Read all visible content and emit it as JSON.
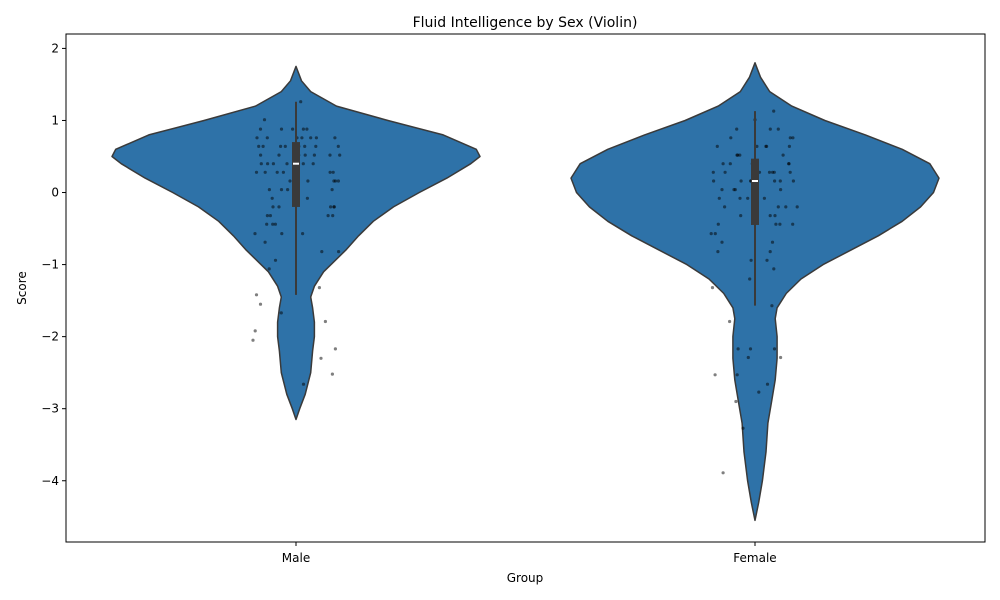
{
  "chart_data": {
    "type": "violin",
    "title": "Fluid Intelligence by Sex (Violin)",
    "xlabel": "Group",
    "ylabel": "Score",
    "ylim": [
      -4.85,
      2.2
    ],
    "yticks": [
      2,
      1,
      0,
      -1,
      -2,
      -3,
      -4
    ],
    "ytick_labels": [
      "2",
      "1",
      "0",
      "−1",
      "−2",
      "−3",
      "−4"
    ],
    "categories": [
      "Male",
      "Female"
    ],
    "color": "#2e72a8",
    "grid": false,
    "legend": "none",
    "groups": [
      {
        "name": "Male",
        "min": -1.42,
        "q1": -0.2,
        "median": 0.4,
        "q3": 0.7,
        "max": 1.26,
        "violin_range": [
          -3.15,
          1.75
        ],
        "density": [
          [
            -3.15,
            0.0
          ],
          [
            -3.0,
            0.02
          ],
          [
            -2.8,
            0.05
          ],
          [
            -2.5,
            0.08
          ],
          [
            -2.2,
            0.09
          ],
          [
            -2.0,
            0.1
          ],
          [
            -1.8,
            0.1
          ],
          [
            -1.6,
            0.09
          ],
          [
            -1.45,
            0.08
          ],
          [
            -1.3,
            0.1
          ],
          [
            -1.1,
            0.15
          ],
          [
            -0.8,
            0.27
          ],
          [
            -0.6,
            0.34
          ],
          [
            -0.4,
            0.42
          ],
          [
            -0.2,
            0.53
          ],
          [
            0.0,
            0.67
          ],
          [
            0.2,
            0.82
          ],
          [
            0.4,
            0.95
          ],
          [
            0.5,
            1.0
          ],
          [
            0.6,
            0.98
          ],
          [
            0.8,
            0.8
          ],
          [
            1.0,
            0.5
          ],
          [
            1.2,
            0.22
          ],
          [
            1.4,
            0.08
          ],
          [
            1.55,
            0.03
          ],
          [
            1.75,
            0.0
          ]
        ],
        "points": [
          -1.55,
          -1.79,
          -2.17,
          -1.92,
          -2.05,
          -1.42,
          -1.32,
          -2.66,
          -2.52,
          -2.3,
          -1.67,
          -1.06,
          -0.94,
          -0.82,
          -0.82,
          -0.69,
          -0.57,
          -0.57,
          -0.44,
          -0.44,
          -0.32,
          -0.32,
          -0.32,
          -0.2,
          -0.2,
          -0.2,
          -0.2,
          -0.08,
          -0.08,
          0.04,
          0.04,
          0.04,
          0.16,
          0.16,
          0.16,
          0.28,
          0.28,
          0.28,
          0.28,
          0.4,
          0.4,
          0.4,
          0.4,
          0.4,
          0.52,
          0.52,
          0.52,
          0.52,
          0.52,
          0.52,
          0.64,
          0.64,
          0.64,
          0.64,
          0.64,
          0.64,
          0.76,
          0.76,
          0.76,
          0.76,
          0.76,
          0.88,
          0.88,
          0.88,
          0.88,
          1.01,
          1.26,
          0.52,
          0.28,
          0.16,
          -0.08,
          -0.44,
          -0.57,
          0.64,
          0.76,
          0.88,
          0.4,
          0.28,
          -0.2,
          -0.32,
          0.04,
          0.16,
          0.52,
          0.64,
          0.76
        ]
      },
      {
        "name": "Female",
        "min": -1.57,
        "q1": -0.45,
        "median": 0.16,
        "q3": 0.47,
        "max": 1.13,
        "violin_range": [
          -4.55,
          1.8
        ],
        "density": [
          [
            -4.55,
            0.0
          ],
          [
            -4.3,
            0.02
          ],
          [
            -4.0,
            0.04
          ],
          [
            -3.6,
            0.06
          ],
          [
            -3.2,
            0.07
          ],
          [
            -2.9,
            0.09
          ],
          [
            -2.6,
            0.11
          ],
          [
            -2.3,
            0.12
          ],
          [
            -2.0,
            0.12
          ],
          [
            -1.75,
            0.11
          ],
          [
            -1.6,
            0.12
          ],
          [
            -1.4,
            0.17
          ],
          [
            -1.2,
            0.25
          ],
          [
            -1.0,
            0.37
          ],
          [
            -0.8,
            0.52
          ],
          [
            -0.6,
            0.67
          ],
          [
            -0.4,
            0.8
          ],
          [
            -0.2,
            0.9
          ],
          [
            0.0,
            0.97
          ],
          [
            0.2,
            1.0
          ],
          [
            0.4,
            0.95
          ],
          [
            0.6,
            0.8
          ],
          [
            0.8,
            0.6
          ],
          [
            1.0,
            0.38
          ],
          [
            1.2,
            0.2
          ],
          [
            1.4,
            0.08
          ],
          [
            1.6,
            0.03
          ],
          [
            1.8,
            0.0
          ]
        ],
        "points": [
          -1.06,
          -1.57,
          -1.79,
          -2.17,
          -2.29,
          -2.29,
          -2.77,
          -2.9,
          -3.27,
          -2.53,
          -2.66,
          -3.89,
          -2.17,
          -2.17,
          -2.53,
          -1.32,
          -1.2,
          -0.94,
          -0.94,
          -0.82,
          -0.82,
          -0.69,
          -0.57,
          -0.44,
          -0.44,
          -0.44,
          -0.32,
          -0.32,
          -0.2,
          -0.2,
          -0.2,
          -0.08,
          -0.08,
          -0.08,
          0.04,
          0.04,
          0.04,
          0.16,
          0.16,
          0.16,
          0.16,
          0.16,
          0.28,
          0.28,
          0.28,
          0.28,
          0.28,
          0.4,
          0.4,
          0.4,
          0.4,
          0.52,
          0.52,
          0.52,
          0.64,
          0.64,
          0.64,
          0.64,
          0.76,
          0.76,
          0.76,
          0.88,
          0.88,
          1.01,
          1.13,
          0.16,
          0.28,
          -0.2,
          -0.57,
          0.4,
          0.52,
          0.04,
          -0.32,
          0.64,
          0.16,
          -0.08,
          0.28,
          -0.44,
          -0.69,
          0.88
        ]
      }
    ]
  }
}
